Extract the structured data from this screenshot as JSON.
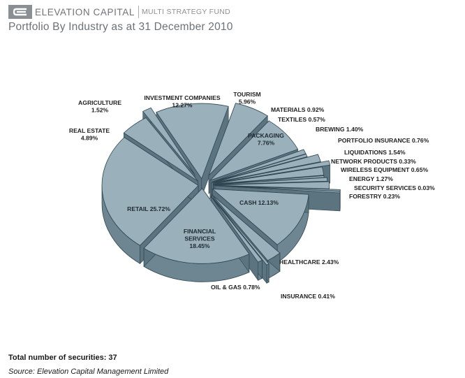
{
  "header": {
    "brand": "ELEVATION CAPITAL",
    "fund": "MULTI STRATEGY FUND",
    "logo_icon": "elevation-capital-logo-icon"
  },
  "title": "Portfolio By Industry as at 31 December 2010",
  "footer": {
    "total": "Total number of securities: 37",
    "source": "Source: Elevation Capital Management Limited"
  },
  "colors": {
    "top": "#9ab0bb",
    "side": "#6e8692",
    "edge": "#2f4650",
    "title": "#6d7277",
    "brand": "#6f7378"
  },
  "chart_data": {
    "type": "pie",
    "title": "Portfolio By Industry as at 31 December 2010",
    "style": "3d-exploded",
    "slices": [
      {
        "label": "INVESTMENT COMPANIES",
        "value": 12.27,
        "display": "12.27%"
      },
      {
        "label": "TOURISM",
        "value": 5.96,
        "display": "5.96%"
      },
      {
        "label": "PACKAGING",
        "value": 7.76,
        "display": "7.76%"
      },
      {
        "label": "MATERIALS",
        "value": 0.92,
        "display": "0.92%"
      },
      {
        "label": "TEXTILES",
        "value": 0.57,
        "display": "0.57%"
      },
      {
        "label": "BREWING",
        "value": 1.4,
        "display": "1.40%"
      },
      {
        "label": "PORTFOLIO INSURANCE",
        "value": 0.76,
        "display": "0.76%"
      },
      {
        "label": "LIQUIDATIONS",
        "value": 1.54,
        "display": "1.54%"
      },
      {
        "label": "NETWORK PRODUCTS",
        "value": 0.33,
        "display": "0.33%"
      },
      {
        "label": "WIRELESS EQUIPMENT",
        "value": 0.65,
        "display": "0.65%"
      },
      {
        "label": "ENERGY",
        "value": 1.27,
        "display": "1.27%"
      },
      {
        "label": "SECURITY SERVICES",
        "value": 0.03,
        "display": "0.03%"
      },
      {
        "label": "FORESTRY",
        "value": 0.23,
        "display": "0.23%"
      },
      {
        "label": "CASH",
        "value": 12.13,
        "display": "12.13%"
      },
      {
        "label": "HEALTHCARE",
        "value": 2.43,
        "display": "2.43%"
      },
      {
        "label": "INSURANCE",
        "value": 0.41,
        "display": "0.41%"
      },
      {
        "label": "OIL & GAS",
        "value": 0.78,
        "display": "0.78%"
      },
      {
        "label": "FINANCIAL SERVICES",
        "value": 18.45,
        "display": "18.45%"
      },
      {
        "label": "RETAIL",
        "value": 25.72,
        "display": "25.72%"
      },
      {
        "label": "REAL ESTATE",
        "value": 4.89,
        "display": "4.89%"
      },
      {
        "label": "AGRICULTURE",
        "value": 1.52,
        "display": "1.52%"
      }
    ]
  }
}
